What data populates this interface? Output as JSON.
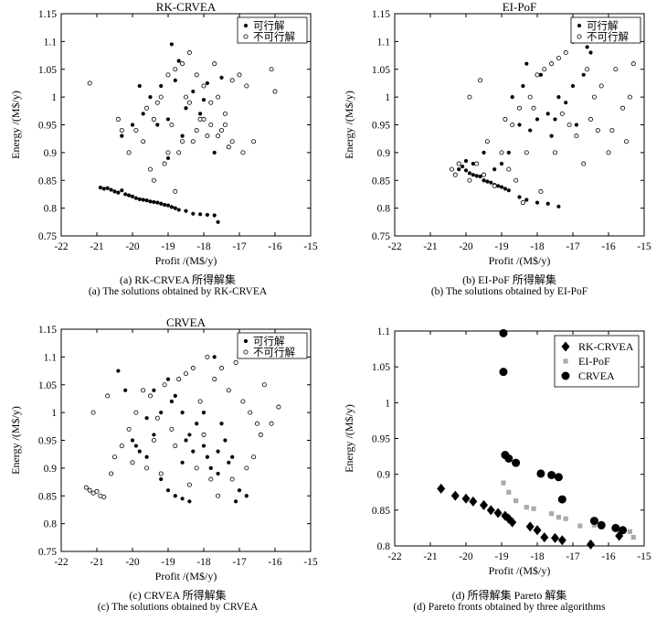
{
  "panels": [
    {
      "title": "RK-CRVEA",
      "caption_cn": "(a) RK-CRVEA 所得解集",
      "caption_en": "(a) The solutions obtained by RK-CRVEA"
    },
    {
      "title": "EI-PoF",
      "caption_cn": "(b) EI-PoF 所得解集",
      "caption_en": "(b) The solutions obtained by EI-PoF"
    },
    {
      "title": "CRVEA",
      "caption_cn": "(c) CRVEA 所得解集",
      "caption_en": "(c) The solutions obtained by CRVEA"
    },
    {
      "title": "",
      "caption_cn": "(d) 所得解集 Pareto 解集",
      "caption_en": "(d) Pareto fronts obtained by three algorithms"
    }
  ],
  "chart_data": [
    {
      "type": "scatter",
      "title": "RK-CRVEA",
      "xlabel": "Profit /(M$/y)",
      "ylabel": "Energy /(M$/y)",
      "xlim": [
        -22,
        -15
      ],
      "ylim": [
        0.75,
        1.15
      ],
      "xticks": [
        "-22",
        "-21",
        "-20",
        "-19",
        "-18",
        "-17",
        "-16",
        "-15"
      ],
      "yticks": [
        "0.75",
        "0.8",
        "0.85",
        "0.9",
        "0.95",
        "1",
        "1.05",
        "1.1",
        "1.15"
      ],
      "legend": [
        "可行解",
        "不可行解"
      ],
      "legend_position": "top-right",
      "series": [
        {
          "name": "可行解",
          "marker": "filled",
          "x": [
            -20.9,
            -20.8,
            -20.7,
            -20.6,
            -20.5,
            -20.4,
            -20.3,
            -20.2,
            -20.1,
            -20.0,
            -19.9,
            -19.8,
            -19.7,
            -19.6,
            -19.5,
            -19.4,
            -19.3,
            -19.2,
            -19.1,
            -19.0,
            -18.9,
            -18.8,
            -18.7,
            -18.5,
            -18.3,
            -18.1,
            -17.9,
            -17.7,
            -17.6,
            -20.3,
            -20.0,
            -19.7,
            -19.5,
            -19.2,
            -19.0,
            -18.8,
            -18.7,
            -18.5,
            -18.3,
            -18.1,
            -18.0,
            -17.9,
            -17.5,
            -18.9,
            -19.3,
            -18.6,
            -18.2,
            -17.7,
            -19.8,
            -19.0
          ],
          "y": [
            0.837,
            0.835,
            0.836,
            0.833,
            0.83,
            0.828,
            0.832,
            0.825,
            0.823,
            0.821,
            0.818,
            0.816,
            0.815,
            0.814,
            0.812,
            0.811,
            0.81,
            0.808,
            0.806,
            0.805,
            0.802,
            0.8,
            0.797,
            0.795,
            0.79,
            0.789,
            0.788,
            0.787,
            0.775,
            0.93,
            0.95,
            0.97,
            1.0,
            1.02,
            0.96,
            1.03,
            1.065,
            0.98,
            1.01,
            0.97,
            0.995,
            1.025,
            1.035,
            1.095,
            0.95,
            0.93,
            0.94,
            0.9,
            1.02,
            0.89
          ]
        },
        {
          "name": "不可行解",
          "marker": "open",
          "x": [
            -21.2,
            -20.4,
            -20.1,
            -19.9,
            -19.6,
            -19.4,
            -19.2,
            -19.0,
            -18.8,
            -18.6,
            -18.4,
            -18.2,
            -18.0,
            -17.8,
            -17.6,
            -17.4,
            -17.2,
            -17.0,
            -16.8,
            -16.0,
            -16.1,
            -19.5,
            -19.1,
            -18.7,
            -18.3,
            -17.9,
            -17.5,
            -17.3,
            -18.5,
            -18.1,
            -17.7,
            -19.3,
            -18.9,
            -18.4,
            -18.0,
            -17.6,
            -20.3,
            -19.7,
            -19.0,
            -18.6,
            -18.2,
            -17.8,
            -17.2,
            -16.6,
            -16.9,
            -18.8,
            -19.4,
            -17.4
          ],
          "y": [
            1.025,
            0.96,
            0.9,
            0.94,
            0.98,
            0.96,
            1.0,
            1.04,
            1.05,
            1.06,
            1.08,
            1.04,
            1.02,
            0.99,
            1.0,
            0.97,
            1.03,
            1.04,
            1.02,
            1.01,
            1.05,
            0.87,
            0.88,
            0.9,
            0.92,
            0.93,
            0.94,
            0.91,
            1.0,
            0.96,
            1.06,
            0.99,
            0.95,
            0.99,
            0.96,
            0.93,
            0.94,
            0.92,
            0.9,
            0.92,
            0.94,
            0.95,
            0.92,
            0.92,
            0.9,
            0.83,
            0.85,
            0.95
          ]
        }
      ]
    },
    {
      "type": "scatter",
      "title": "EI-PoF",
      "xlabel": "Profit /(M$/y)",
      "ylabel": "Energy /(M$/y)",
      "xlim": [
        -22,
        -15
      ],
      "ylim": [
        0.75,
        1.15
      ],
      "xticks": [
        "-22",
        "-21",
        "-20",
        "-19",
        "-18",
        "-17",
        "-16",
        "-15"
      ],
      "yticks": [
        "0.75",
        "0.8",
        "0.85",
        "0.9",
        "0.95",
        "1",
        "1.05",
        "1.1",
        "1.15"
      ],
      "legend": [
        "可行解",
        "不可行解"
      ],
      "legend_position": "top-right",
      "series": [
        {
          "name": "可行解",
          "marker": "filled",
          "x": [
            -20.2,
            -20.1,
            -20.0,
            -19.9,
            -19.8,
            -19.7,
            -19.6,
            -19.5,
            -19.4,
            -19.3,
            -19.2,
            -19.1,
            -19.0,
            -18.9,
            -18.8,
            -18.5,
            -18.3,
            -18.0,
            -17.7,
            -17.4,
            -20.0,
            -19.8,
            -19.5,
            -19.2,
            -19.0,
            -18.8,
            -18.5,
            -18.2,
            -18.0,
            -17.7,
            -17.4,
            -17.0,
            -16.7,
            -16.5,
            -18.7,
            -18.3,
            -17.9,
            -17.5,
            -17.2,
            -16.9,
            -16.6,
            -18.4,
            -17.6
          ],
          "y": [
            0.87,
            0.875,
            0.868,
            0.863,
            0.86,
            0.858,
            0.857,
            0.85,
            0.848,
            0.846,
            0.842,
            0.84,
            0.838,
            0.835,
            0.832,
            0.82,
            0.815,
            0.81,
            0.808,
            0.803,
            0.885,
            0.88,
            0.9,
            0.87,
            0.88,
            0.9,
            0.95,
            0.94,
            0.96,
            0.97,
            1.0,
            1.02,
            1.04,
            1.08,
            1.0,
            1.06,
            1.04,
            0.96,
            0.99,
            0.95,
            1.09,
            1.02,
            0.93
          ]
        },
        {
          "name": "不可行解",
          "marker": "open",
          "x": [
            -20.4,
            -20.3,
            -20.2,
            -19.9,
            -19.7,
            -19.5,
            -19.2,
            -19.0,
            -18.8,
            -18.7,
            -18.5,
            -18.3,
            -18.2,
            -18.0,
            -17.8,
            -17.6,
            -17.4,
            -17.2,
            -17.0,
            -16.8,
            -16.6,
            -16.4,
            -16.2,
            -16.0,
            -15.8,
            -15.6,
            -15.4,
            -15.3,
            -19.9,
            -19.6,
            -19.4,
            -18.6,
            -17.5,
            -17.1,
            -16.9,
            -16.5,
            -16.3,
            -18.9,
            -18.1,
            -17.3,
            -16.7,
            -15.9,
            -15.5,
            -18.4,
            -17.9
          ],
          "y": [
            0.87,
            0.86,
            0.88,
            0.85,
            0.88,
            0.86,
            0.84,
            0.9,
            0.87,
            0.95,
            0.98,
            0.9,
            1.0,
            1.04,
            1.05,
            1.06,
            1.07,
            1.08,
            1.1,
            1.11,
            1.05,
            1.0,
            1.02,
            0.9,
            1.05,
            0.98,
            1.0,
            1.06,
            1.0,
            1.03,
            0.92,
            0.85,
            0.9,
            0.95,
            0.93,
            0.96,
            0.94,
            0.96,
            0.98,
            0.97,
            0.88,
            0.94,
            0.92,
            0.81,
            0.83
          ]
        }
      ]
    },
    {
      "type": "scatter",
      "title": "CRVEA",
      "xlabel": "Profit /(M$/y)",
      "ylabel": "Energy /(M$/y)",
      "xlim": [
        -22,
        -15
      ],
      "ylim": [
        0.75,
        1.15
      ],
      "xticks": [
        "-22",
        "-21",
        "-20",
        "-19",
        "-18",
        "-17",
        "-16",
        "-15"
      ],
      "yticks": [
        "0.75",
        "0.8",
        "0.85",
        "0.9",
        "0.95",
        "1",
        "1.05",
        "1.1",
        "1.15"
      ],
      "legend": [
        "可行解",
        "不可行解"
      ],
      "legend_position": "top-right",
      "series": [
        {
          "name": "可行解",
          "marker": "filled",
          "x": [
            -20.4,
            -20.2,
            -20.0,
            -19.8,
            -19.6,
            -19.4,
            -19.2,
            -19.0,
            -18.8,
            -18.6,
            -18.4,
            -18.2,
            -18.0,
            -17.8,
            -17.6,
            -17.4,
            -17.2,
            -17.0,
            -16.8,
            -19.0,
            -18.8,
            -18.6,
            -18.4,
            -18.2,
            -17.9,
            -17.5,
            -19.6,
            -19.2,
            -18.6,
            -18.0,
            -17.7,
            -17.3,
            -19.9,
            -19.4,
            -18.9,
            -18.5,
            -17.1,
            -17.6,
            -18.3
          ],
          "y": [
            1.075,
            1.04,
            0.95,
            0.93,
            0.92,
            0.96,
            1.0,
            1.06,
            1.03,
            1.0,
            0.96,
            0.98,
            0.94,
            0.9,
            0.93,
            0.95,
            0.92,
            0.86,
            0.85,
            0.86,
            0.85,
            0.845,
            0.84,
            0.9,
            0.92,
            0.98,
            0.99,
            0.88,
            0.91,
            1.0,
            1.1,
            0.91,
            0.94,
            1.04,
            1.02,
            0.95,
            0.84,
            0.89,
            0.93
          ]
        },
        {
          "name": "不可行解",
          "marker": "open",
          "x": [
            -21.3,
            -21.2,
            -21.1,
            -21.0,
            -20.9,
            -20.8,
            -21.1,
            -20.7,
            -20.5,
            -20.3,
            -20.1,
            -19.9,
            -19.7,
            -19.5,
            -19.3,
            -19.1,
            -18.9,
            -18.7,
            -18.5,
            -18.3,
            -18.1,
            -17.9,
            -17.7,
            -17.5,
            -17.3,
            -17.1,
            -16.9,
            -16.7,
            -16.5,
            -16.3,
            -16.1,
            -15.9,
            -20.0,
            -19.6,
            -19.2,
            -18.8,
            -18.4,
            -18.0,
            -17.6,
            -17.2,
            -16.8,
            -16.4,
            -20.6,
            -19.4,
            -18.2,
            -17.8,
            -16.6
          ],
          "y": [
            0.865,
            0.86,
            0.855,
            0.858,
            0.85,
            0.848,
            1.0,
            1.03,
            0.92,
            0.94,
            0.97,
            1.0,
            1.04,
            1.03,
            0.99,
            1.05,
            0.97,
            1.06,
            1.07,
            1.08,
            1.02,
            1.1,
            1.06,
            1.08,
            1.04,
            1.09,
            1.02,
            1.0,
            0.98,
            1.05,
            0.98,
            1.01,
            0.91,
            0.9,
            0.89,
            0.94,
            0.87,
            0.96,
            0.85,
            0.88,
            0.9,
            0.96,
            0.89,
            0.95,
            0.9,
            0.88,
            0.92
          ]
        }
      ]
    },
    {
      "type": "scatter",
      "title": "",
      "xlabel": "Profit /(M$/y)",
      "ylabel": "Energy /(M$/y)",
      "xlim": [
        -22,
        -15
      ],
      "ylim": [
        0.8,
        1.1
      ],
      "xticks": [
        "-22",
        "-21",
        "-20",
        "-19",
        "-18",
        "-17",
        "-16",
        "-15"
      ],
      "yticks": [
        "0.8",
        "0.85",
        "0.9",
        "0.95",
        "1",
        "1.05",
        "1.1"
      ],
      "legend": [
        "RK-CRVEA",
        "EI-PoF",
        "CRVEA"
      ],
      "legend_position": "top-right",
      "series": [
        {
          "name": "RK-CRVEA",
          "marker": "diamond",
          "color": "#000000",
          "x": [
            -20.7,
            -20.3,
            -20.0,
            -19.8,
            -19.5,
            -19.3,
            -19.1,
            -18.9,
            -18.8,
            -18.7,
            -18.2,
            -18.0,
            -17.8,
            -17.5,
            -17.3,
            -16.5,
            -15.7
          ],
          "y": [
            0.88,
            0.87,
            0.866,
            0.862,
            0.857,
            0.85,
            0.846,
            0.842,
            0.838,
            0.833,
            0.827,
            0.822,
            0.812,
            0.811,
            0.808,
            0.802,
            0.814
          ]
        },
        {
          "name": "EI-PoF",
          "marker": "square",
          "color": "#aaaaaa",
          "x": [
            -18.95,
            -18.8,
            -18.6,
            -18.3,
            -18.1,
            -17.6,
            -17.4,
            -17.2,
            -16.8,
            -16.4,
            -16.2,
            -15.8,
            -15.4,
            -15.3
          ],
          "y": [
            0.888,
            0.875,
            0.863,
            0.854,
            0.852,
            0.845,
            0.84,
            0.838,
            0.828,
            0.829,
            0.826,
            0.826,
            0.82,
            0.812
          ]
        },
        {
          "name": "CRVEA",
          "marker": "circle",
          "color": "#000000",
          "x": [
            -18.95,
            -18.95,
            -18.9,
            -18.8,
            -18.6,
            -17.9,
            -17.6,
            -17.4,
            -17.3,
            -16.4,
            -16.2,
            -15.8,
            -15.6
          ],
          "y": [
            1.097,
            1.043,
            0.927,
            0.922,
            0.916,
            0.901,
            0.899,
            0.896,
            0.865,
            0.835,
            0.829,
            0.825,
            0.822
          ]
        }
      ]
    }
  ]
}
